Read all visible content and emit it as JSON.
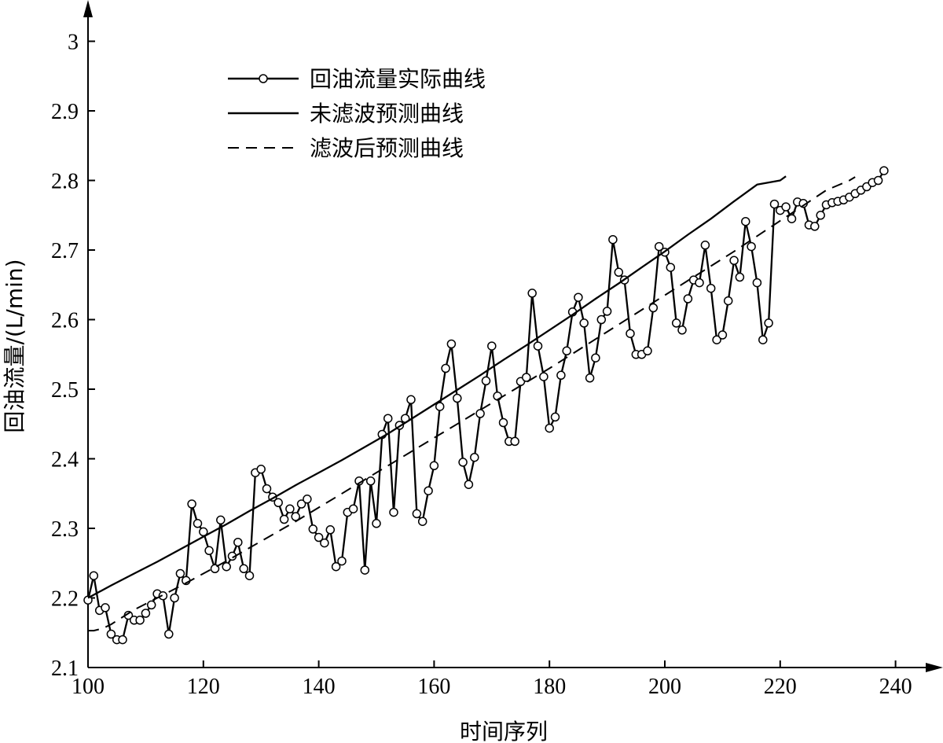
{
  "chart_data": {
    "type": "line",
    "xlabel": "时间序列",
    "ylabel": "回油流量/(L/min)",
    "xlim": [
      100,
      245
    ],
    "ylim": [
      2.1,
      3.05
    ],
    "x_ticks": [
      "100",
      "120",
      "140",
      "160",
      "180",
      "200",
      "220",
      "240"
    ],
    "y_ticks": [
      "2.1",
      "2.2",
      "2.3",
      "2.4",
      "2.5",
      "2.6",
      "2.7",
      "2.8",
      "2.9",
      "3"
    ],
    "grid": false,
    "legend_position": "top-left",
    "series": [
      {
        "name": "回油流量实际曲线",
        "style": "solid-circle",
        "color": "#000000",
        "x": [
          100,
          101,
          102,
          103,
          104,
          105,
          106,
          107,
          108,
          109,
          110,
          111,
          112,
          113,
          114,
          115,
          116,
          117,
          118,
          119,
          120,
          121,
          122,
          123,
          124,
          125,
          126,
          127,
          128,
          129,
          130,
          131,
          132,
          133,
          134,
          135,
          136,
          137,
          138,
          139,
          140,
          141,
          142,
          143,
          144,
          145,
          146,
          147,
          148,
          149,
          150,
          151,
          152,
          153,
          154,
          155,
          156,
          157,
          158,
          159,
          160,
          161,
          162,
          163,
          164,
          165,
          166,
          167,
          168,
          169,
          170,
          171,
          172,
          173,
          174,
          175,
          176,
          177,
          178,
          179,
          180,
          181,
          182,
          183,
          184,
          185,
          186,
          187,
          188,
          189,
          190,
          191,
          192,
          193,
          194,
          195,
          196,
          197,
          198,
          199,
          200,
          201,
          202,
          203,
          204,
          205,
          206,
          207,
          208,
          209,
          210,
          211,
          212,
          213,
          214,
          215,
          216,
          217,
          218,
          219,
          220,
          221,
          222,
          223,
          224,
          225,
          226,
          227,
          228,
          229,
          230,
          231,
          232,
          233,
          234,
          235,
          236,
          237,
          238
        ],
        "y": [
          2.197,
          2.232,
          2.182,
          2.186,
          2.148,
          2.14,
          2.14,
          2.175,
          2.168,
          2.168,
          2.178,
          2.19,
          2.206,
          2.203,
          2.148,
          2.2,
          2.235,
          2.225,
          2.335,
          2.307,
          2.295,
          2.268,
          2.242,
          2.312,
          2.245,
          2.26,
          2.28,
          2.242,
          2.232,
          2.38,
          2.385,
          2.357,
          2.345,
          2.337,
          2.313,
          2.328,
          2.317,
          2.335,
          2.342,
          2.299,
          2.287,
          2.279,
          2.298,
          2.245,
          2.253,
          2.323,
          2.328,
          2.368,
          2.24,
          2.368,
          2.307,
          2.435,
          2.458,
          2.323,
          2.448,
          2.458,
          2.485,
          2.321,
          2.31,
          2.354,
          2.39,
          2.475,
          2.53,
          2.565,
          2.487,
          2.395,
          2.363,
          2.402,
          2.465,
          2.512,
          2.562,
          2.49,
          2.452,
          2.425,
          2.425,
          2.511,
          2.517,
          2.638,
          2.562,
          2.518,
          2.444,
          2.46,
          2.52,
          2.555,
          2.611,
          2.632,
          2.595,
          2.516,
          2.545,
          2.6,
          2.612,
          2.715,
          2.668,
          2.657,
          2.58,
          2.55,
          2.55,
          2.555,
          2.617,
          2.705,
          2.697,
          2.675,
          2.595,
          2.585,
          2.63,
          2.657,
          2.653,
          2.707,
          2.645,
          2.571,
          2.578,
          2.627,
          2.685,
          2.661,
          2.741,
          2.705,
          2.653,
          2.571,
          2.595,
          2.766,
          2.757,
          2.762,
          2.745,
          2.769,
          2.767,
          2.736,
          2.734,
          2.75,
          2.765,
          2.768,
          2.77,
          2.772,
          2.776,
          2.781,
          2.786,
          2.791,
          2.797,
          2.8,
          2.814
        ]
      },
      {
        "name": "未滤波预测曲线",
        "style": "solid",
        "color": "#000000",
        "x": [
          100,
          104,
          108,
          112,
          116,
          120,
          124,
          128,
          132,
          136,
          140,
          144,
          148,
          152,
          156,
          160,
          164,
          168,
          172,
          176,
          180,
          184,
          188,
          192,
          196,
          200,
          204,
          208,
          212,
          216,
          220,
          221
        ],
        "y": [
          2.2,
          2.218,
          2.235,
          2.252,
          2.27,
          2.288,
          2.306,
          2.325,
          2.343,
          2.362,
          2.38,
          2.398,
          2.417,
          2.436,
          2.457,
          2.478,
          2.499,
          2.52,
          2.542,
          2.563,
          2.585,
          2.607,
          2.63,
          2.652,
          2.675,
          2.698,
          2.722,
          2.745,
          2.77,
          2.794,
          2.8,
          2.806
        ]
      },
      {
        "name": "滤波后预测曲线",
        "style": "dashed",
        "color": "#000000",
        "x": [
          100,
          101,
          102,
          103,
          104,
          108,
          112,
          116,
          120,
          124,
          128,
          132,
          136,
          140,
          144,
          148,
          152,
          156,
          160,
          164,
          168,
          172,
          176,
          180,
          184,
          188,
          192,
          196,
          200,
          204,
          208,
          212,
          216,
          220,
          224,
          228,
          232,
          233
        ],
        "y": [
          2.153,
          2.153,
          2.155,
          2.158,
          2.162,
          2.183,
          2.2,
          2.217,
          2.235,
          2.253,
          2.272,
          2.291,
          2.31,
          2.33,
          2.35,
          2.37,
          2.39,
          2.41,
          2.43,
          2.45,
          2.47,
          2.49,
          2.51,
          2.53,
          2.551,
          2.572,
          2.593,
          2.614,
          2.635,
          2.656,
          2.677,
          2.698,
          2.72,
          2.742,
          2.764,
          2.786,
          2.8,
          2.805
        ]
      }
    ]
  }
}
